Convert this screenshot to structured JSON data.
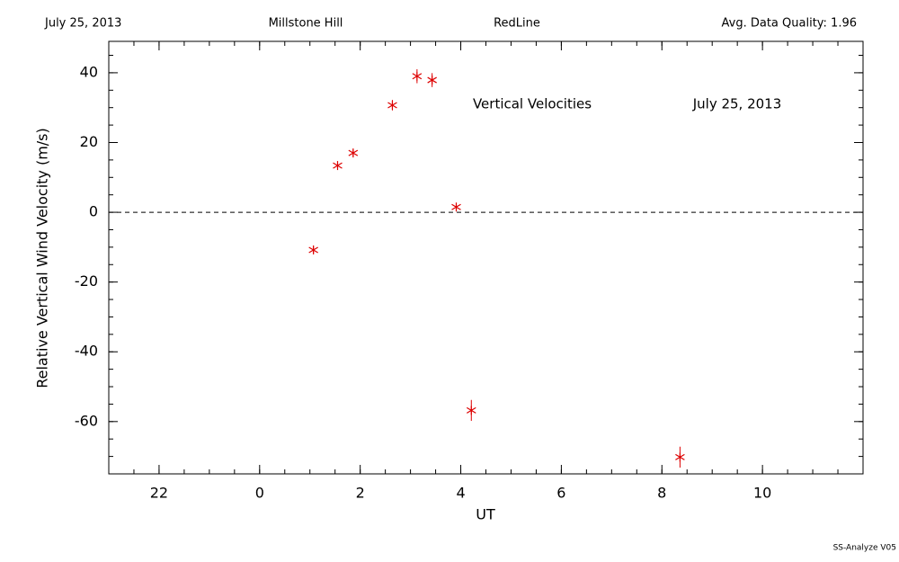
{
  "header": {
    "date": "July 25, 2013",
    "site": "Millstone Hill",
    "line": "RedLine",
    "quality": "Avg. Data Quality: 1.96"
  },
  "footer": "SS-Analyze V05",
  "chart_data": {
    "type": "scatter",
    "annotations": [
      "Vertical Velocities",
      "July 25, 2013"
    ],
    "x_label": "UT",
    "y_label": "Relative Vertical Wind Velocity (m/s)",
    "x": [
      1.07,
      1.55,
      1.86,
      2.64,
      3.13,
      3.43,
      3.91,
      4.21,
      8.36
    ],
    "values": [
      -10.8,
      13.4,
      17.0,
      30.7,
      39.0,
      37.9,
      1.5,
      -56.8,
      -70.2
    ],
    "errors": [
      1,
      1,
      1,
      1.5,
      2,
      2,
      1,
      3,
      3
    ],
    "color": "#dd0000",
    "xlim": [
      -3,
      12
    ],
    "xticks": [
      {
        "value": -2,
        "label": "22"
      },
      0,
      2,
      4,
      6,
      8,
      10
    ],
    "x_minor_step": 0.5,
    "ylim": [
      -75,
      49
    ],
    "yticks": [
      40,
      20,
      0,
      -20,
      -40,
      -60
    ],
    "y_minor_step": 5,
    "zero_line": true
  }
}
